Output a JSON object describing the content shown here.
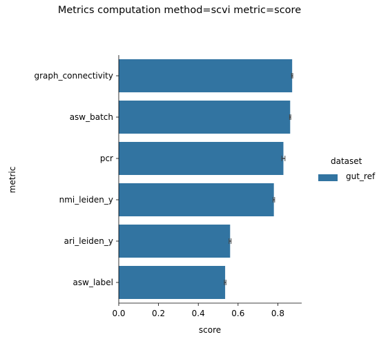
{
  "chart_data": {
    "type": "bar",
    "orientation": "horizontal",
    "title": "Metrics computation method=scvi metric=score",
    "xlabel": "score",
    "ylabel": "metric",
    "categories": [
      "graph_connectivity",
      "asw_batch",
      "pcr",
      "nmi_leiden_y",
      "ari_leiden_y",
      "asw_label"
    ],
    "series": [
      {
        "name": "gut_ref",
        "values": [
          0.872,
          0.862,
          0.828,
          0.78,
          0.56,
          0.535
        ],
        "error": [
          0.003,
          0.003,
          0.008,
          0.004,
          0.005,
          0.004
        ]
      }
    ],
    "xlim": [
      0,
      0.92
    ],
    "xticks": [
      "0.0",
      "0.2",
      "0.4",
      "0.6",
      "0.8"
    ],
    "xtick_values": [
      0.0,
      0.2,
      0.4,
      0.6,
      0.8
    ],
    "legend_title": "dataset",
    "legend_position": "right",
    "grid": false,
    "bar_color": "#3274a1",
    "errorbar_color": "#424242"
  }
}
